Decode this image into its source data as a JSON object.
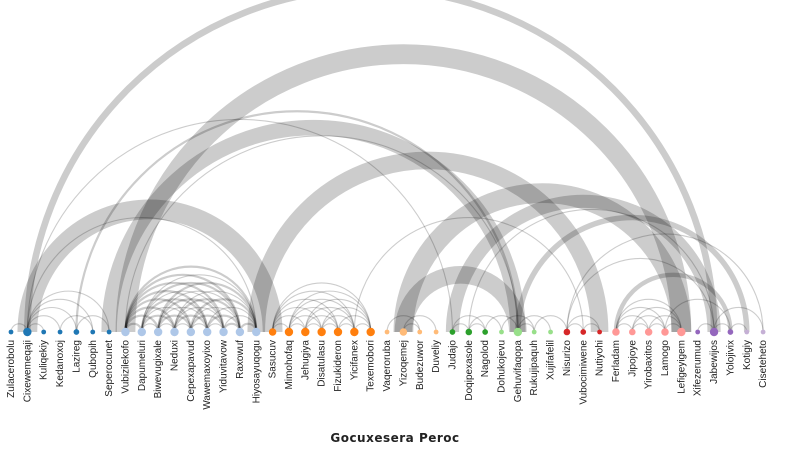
{
  "title": "Gocuxesera Peroc",
  "groups": [
    {
      "id": 0,
      "color": "#1f77b4"
    },
    {
      "id": 1,
      "color": "#aec7e8"
    },
    {
      "id": 2,
      "color": "#ff7f0e"
    },
    {
      "id": 3,
      "color": "#ffbb78"
    },
    {
      "id": 4,
      "color": "#2ca02c"
    },
    {
      "id": 5,
      "color": "#98df8a"
    },
    {
      "id": 6,
      "color": "#d62728"
    },
    {
      "id": 7,
      "color": "#ff9896"
    },
    {
      "id": 8,
      "color": "#9467bd"
    },
    {
      "id": 9,
      "color": "#c5b0d5"
    }
  ],
  "nodes": [
    {
      "name": "Zulacerobolu",
      "group": 0,
      "size": 1
    },
    {
      "name": "Cixewemeqaji",
      "group": 0,
      "size": 3
    },
    {
      "name": "Kuliqekiy",
      "group": 0,
      "size": 1
    },
    {
      "name": "Kedanoxoj",
      "group": 0,
      "size": 1
    },
    {
      "name": "Lazireg",
      "group": 0,
      "size": 1.5
    },
    {
      "name": "Qubopih",
      "group": 0,
      "size": 1
    },
    {
      "name": "Seperocunet",
      "group": 0,
      "size": 1
    },
    {
      "name": "Vubizilekofo",
      "group": 1,
      "size": 3
    },
    {
      "name": "Dapumeluri",
      "group": 1,
      "size": 3
    },
    {
      "name": "Biwevugixale",
      "group": 1,
      "size": 3
    },
    {
      "name": "Neduxi",
      "group": 1,
      "size": 3
    },
    {
      "name": "Cepexapavud",
      "group": 1,
      "size": 3
    },
    {
      "name": "Wawemaxoyixo",
      "group": 1,
      "size": 3
    },
    {
      "name": "Yiduvitavow",
      "group": 1,
      "size": 3
    },
    {
      "name": "Raxowuf",
      "group": 1,
      "size": 3
    },
    {
      "name": "Hiyosayuqogu",
      "group": 1,
      "size": 3
    },
    {
      "name": "Sasucuv",
      "group": 2,
      "size": 2.5
    },
    {
      "name": "Mimohofaq",
      "group": 2,
      "size": 3
    },
    {
      "name": "Jehugiya",
      "group": 2,
      "size": 3
    },
    {
      "name": "Disatulasu",
      "group": 2,
      "size": 3
    },
    {
      "name": "Fizukideron",
      "group": 2,
      "size": 3
    },
    {
      "name": "Yicifanex",
      "group": 2,
      "size": 3
    },
    {
      "name": "Texemobori",
      "group": 2,
      "size": 3
    },
    {
      "name": "Vaqeroruba",
      "group": 3,
      "size": 1
    },
    {
      "name": "Yizoqemej",
      "group": 3,
      "size": 2.5
    },
    {
      "name": "Budezuwor",
      "group": 3,
      "size": 1
    },
    {
      "name": "Duveliy",
      "group": 3,
      "size": 1
    },
    {
      "name": "Judajo",
      "group": 4,
      "size": 1.5
    },
    {
      "name": "Doqipexasole",
      "group": 4,
      "size": 2
    },
    {
      "name": "Nagolod",
      "group": 4,
      "size": 1.5
    },
    {
      "name": "Dohukojevu",
      "group": 5,
      "size": 1
    },
    {
      "name": "Gehuvifaqopa",
      "group": 5,
      "size": 3
    },
    {
      "name": "Rukujipaquh",
      "group": 5,
      "size": 1
    },
    {
      "name": "Xujifafelil",
      "group": 5,
      "size": 1
    },
    {
      "name": "Nisurizo",
      "group": 6,
      "size": 2
    },
    {
      "name": "Vubocimiwene",
      "group": 6,
      "size": 1.5
    },
    {
      "name": "Nutiyohi",
      "group": 6,
      "size": 1
    },
    {
      "name": "Ferladam",
      "group": 7,
      "size": 2.5
    },
    {
      "name": "Jipojoye",
      "group": 7,
      "size": 2
    },
    {
      "name": "Yirobaxitos",
      "group": 7,
      "size": 2.5
    },
    {
      "name": "Lamogo",
      "group": 7,
      "size": 2.5
    },
    {
      "name": "Lefigeyigem",
      "group": 7,
      "size": 3
    },
    {
      "name": "Xifezerumud",
      "group": 8,
      "size": 1
    },
    {
      "name": "Jabewijos",
      "group": 8,
      "size": 3
    },
    {
      "name": "Yolojivix",
      "group": 8,
      "size": 1.5
    },
    {
      "name": "Kotigiy",
      "group": 9,
      "size": 1
    },
    {
      "name": "Ciseteheto",
      "group": 9,
      "size": 1
    }
  ],
  "links": [
    {
      "source": 1,
      "target": 43,
      "value": 6
    },
    {
      "source": 4,
      "target": 31,
      "value": 2
    },
    {
      "source": 1,
      "target": 15,
      "value": 1
    },
    {
      "source": 7,
      "target": 41,
      "value": 18
    },
    {
      "source": 6,
      "target": 31,
      "value": 14
    },
    {
      "source": 24,
      "target": 41,
      "value": 18
    },
    {
      "source": 27,
      "target": 43,
      "value": 12
    },
    {
      "source": 15,
      "target": 36,
      "value": 16
    },
    {
      "source": 1,
      "target": 27,
      "value": 1
    },
    {
      "source": 31,
      "target": 45,
      "value": 5
    },
    {
      "source": 7,
      "target": 31,
      "value": 1
    },
    {
      "source": 1,
      "target": 16,
      "value": 18
    },
    {
      "source": 28,
      "target": 43,
      "value": 1
    },
    {
      "source": 1,
      "target": 6,
      "value": 1
    },
    {
      "source": 1,
      "target": 5,
      "value": 1
    },
    {
      "source": 1,
      "target": 4,
      "value": 1
    },
    {
      "source": 0,
      "target": 1,
      "value": 1
    },
    {
      "source": 1,
      "target": 2,
      "value": 1
    },
    {
      "source": 1,
      "target": 3,
      "value": 1
    },
    {
      "source": 3,
      "target": 5,
      "value": 1
    },
    {
      "source": 4,
      "target": 6,
      "value": 1
    },
    {
      "source": 7,
      "target": 8,
      "value": 2
    },
    {
      "source": 7,
      "target": 9,
      "value": 2
    },
    {
      "source": 7,
      "target": 10,
      "value": 2
    },
    {
      "source": 7,
      "target": 11,
      "value": 2
    },
    {
      "source": 7,
      "target": 12,
      "value": 2
    },
    {
      "source": 7,
      "target": 13,
      "value": 2
    },
    {
      "source": 7,
      "target": 14,
      "value": 2
    },
    {
      "source": 7,
      "target": 15,
      "value": 2
    },
    {
      "source": 8,
      "target": 9,
      "value": 1
    },
    {
      "source": 8,
      "target": 10,
      "value": 2
    },
    {
      "source": 8,
      "target": 11,
      "value": 1
    },
    {
      "source": 8,
      "target": 12,
      "value": 2
    },
    {
      "source": 8,
      "target": 13,
      "value": 1
    },
    {
      "source": 8,
      "target": 14,
      "value": 2
    },
    {
      "source": 8,
      "target": 15,
      "value": 1
    },
    {
      "source": 9,
      "target": 10,
      "value": 1
    },
    {
      "source": 9,
      "target": 11,
      "value": 2
    },
    {
      "source": 9,
      "target": 12,
      "value": 1
    },
    {
      "source": 9,
      "target": 13,
      "value": 2
    },
    {
      "source": 9,
      "target": 14,
      "value": 1
    },
    {
      "source": 9,
      "target": 15,
      "value": 2
    },
    {
      "source": 10,
      "target": 11,
      "value": 1
    },
    {
      "source": 10,
      "target": 12,
      "value": 2
    },
    {
      "source": 10,
      "target": 13,
      "value": 1
    },
    {
      "source": 10,
      "target": 14,
      "value": 2
    },
    {
      "source": 10,
      "target": 15,
      "value": 1
    },
    {
      "source": 11,
      "target": 12,
      "value": 1
    },
    {
      "source": 11,
      "target": 13,
      "value": 2
    },
    {
      "source": 11,
      "target": 14,
      "value": 1
    },
    {
      "source": 11,
      "target": 15,
      "value": 2
    },
    {
      "source": 12,
      "target": 13,
      "value": 1
    },
    {
      "source": 12,
      "target": 14,
      "value": 2
    },
    {
      "source": 12,
      "target": 15,
      "value": 1
    },
    {
      "source": 13,
      "target": 14,
      "value": 2
    },
    {
      "source": 13,
      "target": 15,
      "value": 1
    },
    {
      "source": 14,
      "target": 15,
      "value": 2
    },
    {
      "source": 16,
      "target": 17,
      "value": 1
    },
    {
      "source": 16,
      "target": 18,
      "value": 1
    },
    {
      "source": 16,
      "target": 19,
      "value": 1
    },
    {
      "source": 16,
      "target": 20,
      "value": 1
    },
    {
      "source": 16,
      "target": 21,
      "value": 1
    },
    {
      "source": 16,
      "target": 22,
      "value": 1
    },
    {
      "source": 17,
      "target": 18,
      "value": 1
    },
    {
      "source": 17,
      "target": 19,
      "value": 1
    },
    {
      "source": 17,
      "target": 20,
      "value": 1
    },
    {
      "source": 17,
      "target": 21,
      "value": 1
    },
    {
      "source": 17,
      "target": 22,
      "value": 1
    },
    {
      "source": 18,
      "target": 19,
      "value": 1
    },
    {
      "source": 18,
      "target": 20,
      "value": 1
    },
    {
      "source": 18,
      "target": 21,
      "value": 1
    },
    {
      "source": 18,
      "target": 22,
      "value": 1
    },
    {
      "source": 19,
      "target": 20,
      "value": 1
    },
    {
      "source": 19,
      "target": 21,
      "value": 1
    },
    {
      "source": 19,
      "target": 22,
      "value": 1
    },
    {
      "source": 20,
      "target": 21,
      "value": 1
    },
    {
      "source": 20,
      "target": 22,
      "value": 1
    },
    {
      "source": 21,
      "target": 22,
      "value": 1
    },
    {
      "source": 21,
      "target": 35,
      "value": 1
    },
    {
      "source": 24,
      "target": 26,
      "value": 1
    },
    {
      "source": 24,
      "target": 25,
      "value": 1
    },
    {
      "source": 23,
      "target": 25,
      "value": 1
    },
    {
      "source": 24,
      "target": 31,
      "value": 16
    },
    {
      "source": 27,
      "target": 29,
      "value": 1
    },
    {
      "source": 28,
      "target": 29,
      "value": 1
    },
    {
      "source": 28,
      "target": 30,
      "value": 1
    },
    {
      "source": 27,
      "target": 28,
      "value": 1
    },
    {
      "source": 31,
      "target": 33,
      "value": 1
    },
    {
      "source": 29,
      "target": 31,
      "value": 1
    },
    {
      "source": 32,
      "target": 34,
      "value": 1
    },
    {
      "source": 30,
      "target": 32,
      "value": 1
    },
    {
      "source": 31,
      "target": 32,
      "value": 1
    },
    {
      "source": 34,
      "target": 36,
      "value": 1
    },
    {
      "source": 34,
      "target": 35,
      "value": 1
    },
    {
      "source": 35,
      "target": 36,
      "value": 1
    },
    {
      "source": 34,
      "target": 43,
      "value": 1
    },
    {
      "source": 34,
      "target": 46,
      "value": 1
    },
    {
      "source": 37,
      "target": 38,
      "value": 1
    },
    {
      "source": 37,
      "target": 39,
      "value": 1
    },
    {
      "source": 37,
      "target": 40,
      "value": 1
    },
    {
      "source": 37,
      "target": 41,
      "value": 1
    },
    {
      "source": 38,
      "target": 39,
      "value": 1
    },
    {
      "source": 38,
      "target": 40,
      "value": 1
    },
    {
      "source": 38,
      "target": 41,
      "value": 1
    },
    {
      "source": 39,
      "target": 40,
      "value": 1
    },
    {
      "source": 39,
      "target": 41,
      "value": 1
    },
    {
      "source": 40,
      "target": 41,
      "value": 1
    },
    {
      "source": 37,
      "target": 44,
      "value": 4
    },
    {
      "source": 40,
      "target": 44,
      "value": 1
    },
    {
      "source": 42,
      "target": 43,
      "value": 1
    },
    {
      "source": 43,
      "target": 44,
      "value": 1
    },
    {
      "source": 44,
      "target": 45,
      "value": 1
    },
    {
      "source": 43,
      "target": 46,
      "value": 1
    }
  ]
}
